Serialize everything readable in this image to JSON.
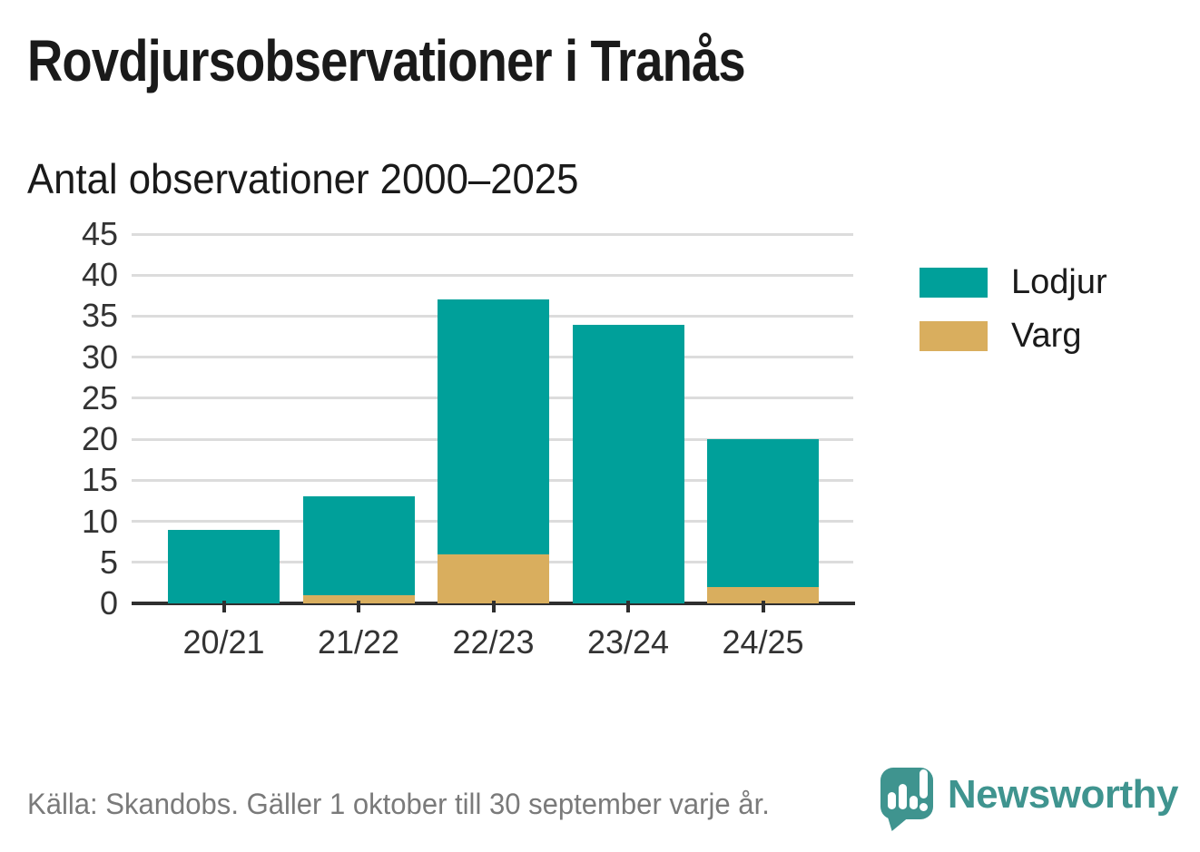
{
  "header": {
    "title": "Rovdjursobservationer i Tranås",
    "subtitle": "Antal observationer 2000–2025"
  },
  "chart_data": {
    "type": "bar",
    "stacked": true,
    "title": "Rovdjursobservationer i Tranås",
    "subtitle": "Antal observationer 2000–2025",
    "xlabel": "",
    "ylabel": "",
    "categories": [
      "20/21",
      "21/22",
      "22/23",
      "23/24",
      "24/25"
    ],
    "series": [
      {
        "name": "Lodjur",
        "color": "#00a09a",
        "values": [
          9,
          12,
          31,
          34,
          18
        ]
      },
      {
        "name": "Varg",
        "color": "#d9ae5e",
        "values": [
          0,
          1,
          6,
          0,
          2
        ]
      }
    ],
    "stack_order_bottom_to_top": [
      "Varg",
      "Lodjur"
    ],
    "totals": [
      9,
      13,
      37,
      34,
      20
    ],
    "yticks": [
      0,
      5,
      10,
      15,
      20,
      25,
      30,
      35,
      40,
      45
    ],
    "ylim": [
      0,
      45
    ],
    "grid": "horizontal-only",
    "legend_position": "right"
  },
  "legend": {
    "items": [
      {
        "label": "Lodjur",
        "color": "#00a09a"
      },
      {
        "label": "Varg",
        "color": "#d9ae5e"
      }
    ]
  },
  "footer": {
    "source": "Källa: Skandobs. Gäller 1 oktober till 30 september varje år.",
    "brand": "Newsworthy"
  },
  "colors": {
    "lodjur_teal": "#00a09a",
    "varg_gold": "#d9ae5e",
    "brand_teal": "#3f948f",
    "title_text": "#1a1a1a",
    "axis_text": "#333333",
    "gridline": "#dcdcdc",
    "axis_line": "#2f2f2f",
    "source_text": "#7a7a7a"
  }
}
